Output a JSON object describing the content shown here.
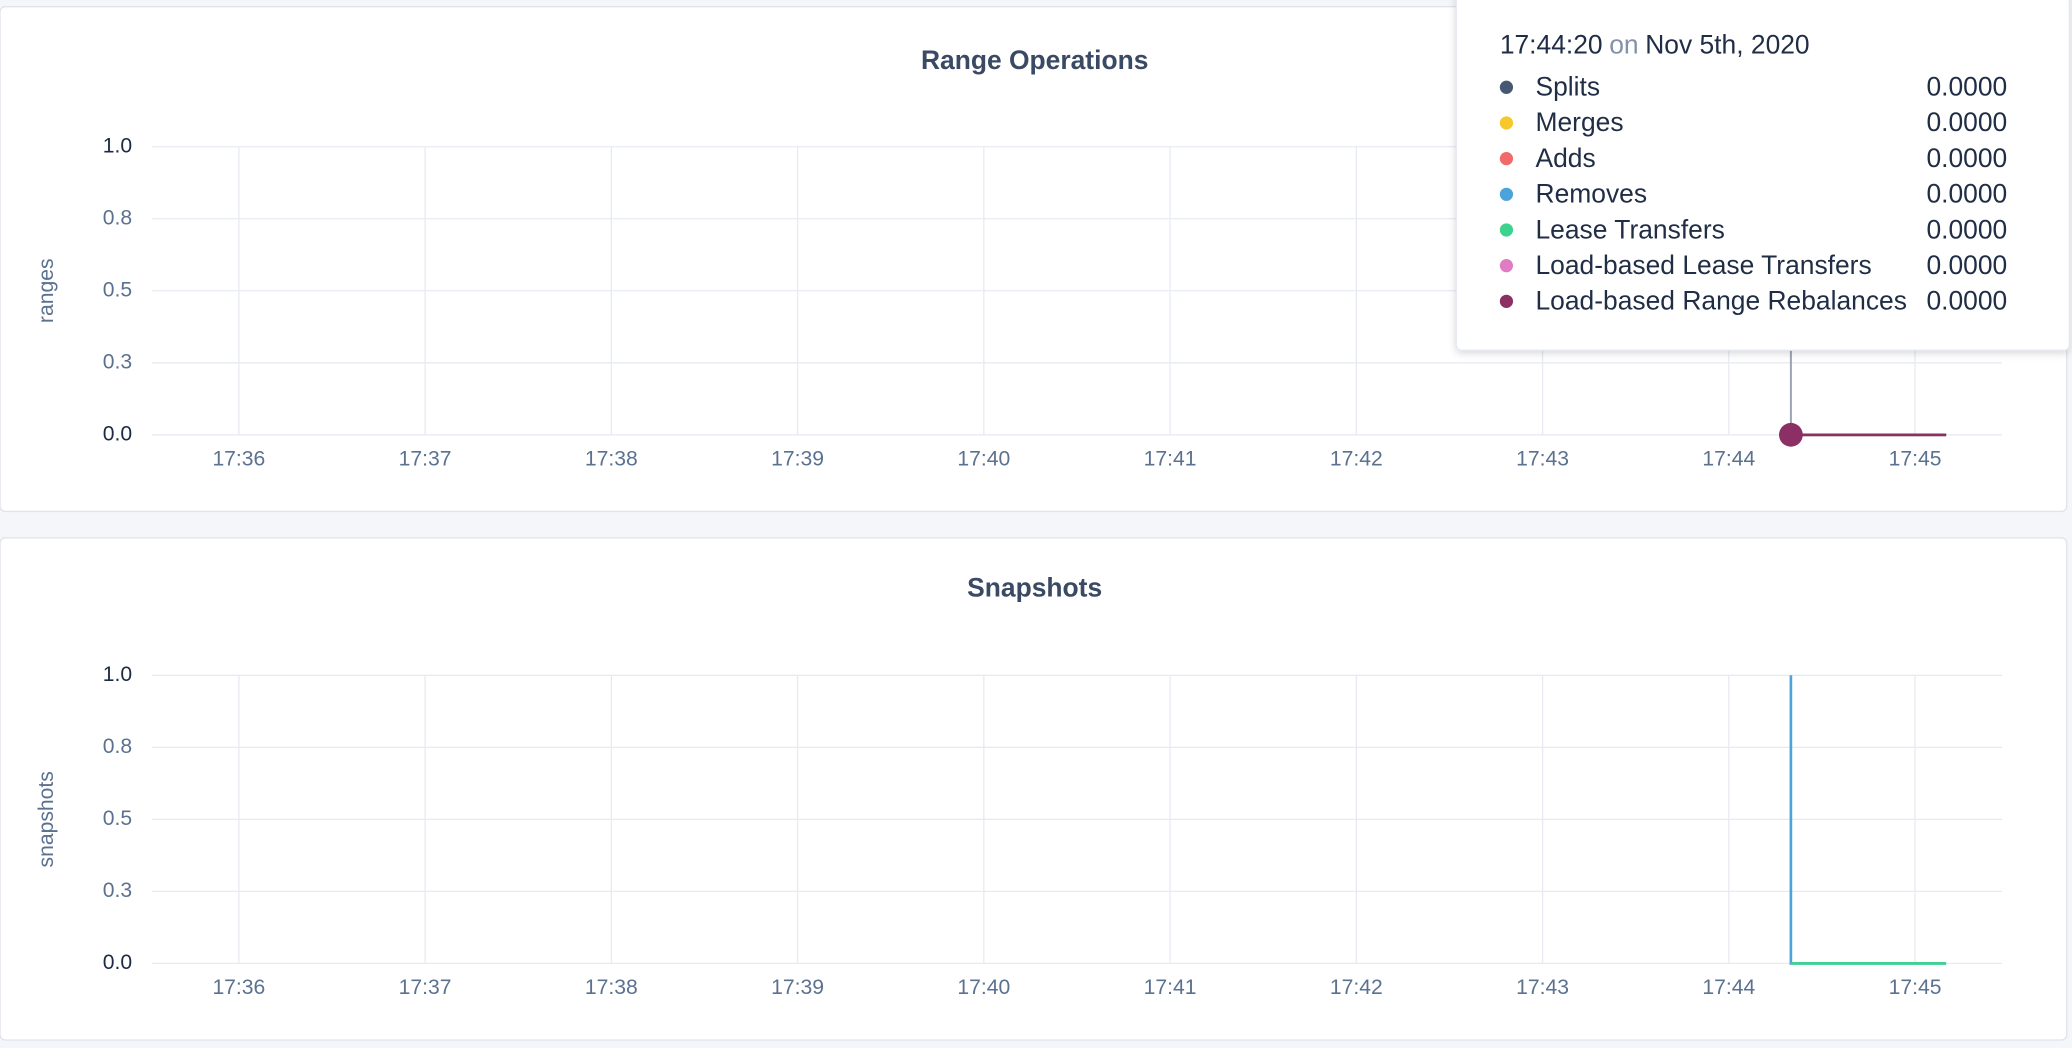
{
  "chart_data": [
    {
      "type": "line",
      "title": "Range Operations",
      "ylabel": "ranges",
      "x": [
        "17:44:20",
        "17:45:10"
      ],
      "xlim": [
        "17:35:32",
        "17:45:28"
      ],
      "xticks": [
        "17:36",
        "17:37",
        "17:38",
        "17:39",
        "17:40",
        "17:41",
        "17:42",
        "17:43",
        "17:44",
        "17:45"
      ],
      "ylim": [
        0,
        1
      ],
      "yticks": [
        {
          "value": 0,
          "label": "0.0"
        },
        {
          "value": 0.25,
          "label": "0.3"
        },
        {
          "value": 0.5,
          "label": "0.5"
        },
        {
          "value": 0.75,
          "label": "0.8"
        },
        {
          "value": 1,
          "label": "1.0"
        }
      ],
      "grid": true,
      "series": [
        {
          "name": "Splits",
          "color": "#475872",
          "values": [
            0,
            0
          ]
        },
        {
          "name": "Merges",
          "color": "#f6c829",
          "values": [
            0,
            0
          ]
        },
        {
          "name": "Adds",
          "color": "#f16969",
          "values": [
            0,
            0
          ]
        },
        {
          "name": "Removes",
          "color": "#4ba3d9",
          "values": [
            0,
            0
          ]
        },
        {
          "name": "Lease Transfers",
          "color": "#3dd28d",
          "values": [
            0,
            0
          ]
        },
        {
          "name": "Load-based Lease Transfers",
          "color": "#e07cc4",
          "values": [
            0,
            0
          ]
        },
        {
          "name": "Load-based Range Rebalances",
          "color": "#8c2f64",
          "values": [
            0,
            0
          ]
        }
      ],
      "tooltip": {
        "time": "17:44:20",
        "on": "on",
        "date": "Nov 5th, 2020",
        "values": [
          0,
          0,
          0,
          0,
          0,
          0,
          0
        ],
        "value_labels": [
          "0.0000",
          "0.0000",
          "0.0000",
          "0.0000",
          "0.0000",
          "0.0000",
          "0.0000"
        ]
      }
    },
    {
      "type": "line",
      "title": "Snapshots",
      "ylabel": "snapshots",
      "x": [
        "17:44:20",
        "17:44:20",
        "17:45:10"
      ],
      "xlim": [
        "17:35:32",
        "17:45:28"
      ],
      "xticks": [
        "17:36",
        "17:37",
        "17:38",
        "17:39",
        "17:40",
        "17:41",
        "17:42",
        "17:43",
        "17:44",
        "17:45"
      ],
      "ylim": [
        0,
        1
      ],
      "yticks": [
        {
          "value": 0,
          "label": "0.0"
        },
        {
          "value": 0.25,
          "label": "0.3"
        },
        {
          "value": 0.5,
          "label": "0.5"
        },
        {
          "value": 0.75,
          "label": "0.8"
        },
        {
          "value": 1,
          "label": "1.0"
        }
      ],
      "grid": true,
      "series": [
        {
          "color": "#4ba3d9",
          "values": [
            1,
            0,
            0
          ]
        },
        {
          "color": "#3dd28d",
          "values": [
            0,
            0,
            0
          ]
        }
      ]
    }
  ]
}
